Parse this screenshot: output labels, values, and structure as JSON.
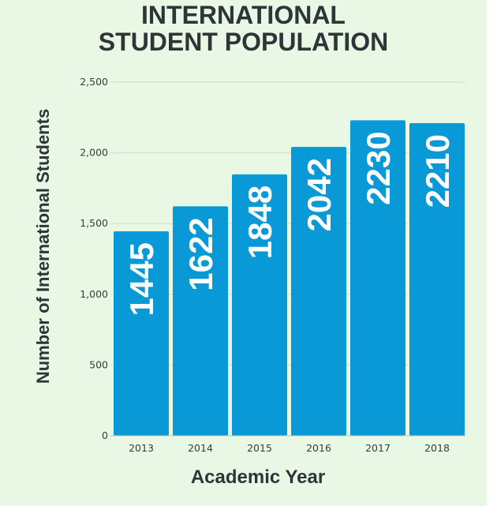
{
  "chart_data": {
    "type": "bar",
    "title_lines": [
      "INTERNATIONAL",
      "STUDENT POPULATION"
    ],
    "xlabel": "Academic Year",
    "ylabel": "Number of International Students",
    "categories": [
      "2013",
      "2014",
      "2015",
      "2016",
      "2017",
      "2018"
    ],
    "values": [
      1445,
      1622,
      1848,
      2042,
      2230,
      2210
    ],
    "data_labels": [
      "1445",
      "1622",
      "1848",
      "2042",
      "2230",
      "2210"
    ],
    "y_ticks": [
      0,
      500,
      1000,
      1500,
      2000,
      2500
    ],
    "y_tick_labels": [
      "0",
      "500",
      "1,000",
      "1,500",
      "2,000",
      "2,500"
    ],
    "ylim": [
      0,
      2500
    ],
    "grid": true,
    "legend": "none",
    "colors": {
      "bar": "#0899d6",
      "background": "#e8f8e4",
      "text": "#2f3438",
      "grid": "#d2dccf"
    }
  }
}
